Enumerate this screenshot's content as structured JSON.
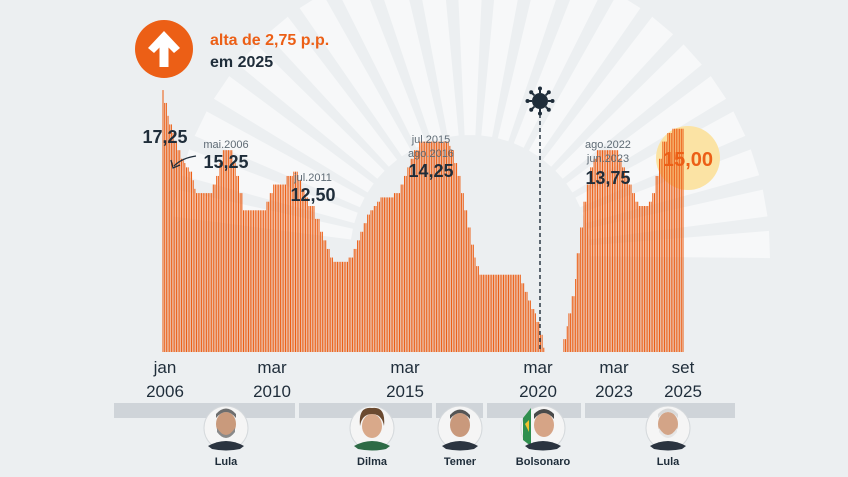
{
  "headline": {
    "line1": "alta de 2,75 p.p.",
    "line2": "em 2025",
    "icon": "arrow-up-icon",
    "accent_color": "#ec5f16"
  },
  "chart_data": {
    "type": "bar",
    "bar_color": "#ec5f16",
    "current_highlight_color": "#fbe3a4",
    "x_start": "2006-01",
    "x_end": "2025-09",
    "ylim": [
      2,
      19
    ],
    "series": [
      {
        "values": [
          17.25,
          16.5,
          16.5,
          15.75,
          15.25,
          15.25,
          14.75,
          14.25,
          14.25,
          13.75,
          13.75,
          13.25,
          13.25,
          13.0,
          12.75,
          12.75,
          12.5,
          12.5,
          12.0,
          11.5,
          11.25,
          11.25,
          11.25,
          11.25,
          11.25,
          11.25,
          11.25,
          11.25,
          11.25,
          11.25,
          11.75,
          11.75,
          12.25,
          12.25,
          13.0,
          13.0,
          13.75,
          13.75,
          13.75,
          13.75,
          13.75,
          13.75,
          13.0,
          13.0,
          12.25,
          12.25,
          11.25,
          11.25,
          10.25,
          10.25,
          10.25,
          10.25,
          10.25,
          10.25,
          10.25,
          10.25,
          10.25,
          10.25,
          10.25,
          10.25,
          10.25,
          10.25,
          10.75,
          10.75,
          11.25,
          11.25,
          11.75,
          11.75,
          11.75,
          11.75,
          11.75,
          11.75,
          11.75,
          11.75,
          12.25,
          12.25,
          12.25,
          12.25,
          12.5,
          12.5,
          12.5,
          12.0,
          12.0,
          11.5,
          11.5,
          11.0,
          11.0,
          10.5,
          10.5,
          10.5,
          10.5,
          9.75,
          9.75,
          9.75,
          9.0,
          9.0,
          8.5,
          8.5,
          8.0,
          8.0,
          7.5,
          7.5,
          7.25,
          7.25,
          7.25,
          7.25,
          7.25,
          7.25,
          7.25,
          7.25,
          7.25,
          7.5,
          7.5,
          7.5,
          8.0,
          8.0,
          8.5,
          8.5,
          9.0,
          9.0,
          9.5,
          9.5,
          10.0,
          10.0,
          10.25,
          10.25,
          10.5,
          10.5,
          10.75,
          10.75,
          11.0,
          11.0,
          11.0,
          11.0,
          11.0,
          11.0,
          11.0,
          11.0,
          11.25,
          11.25,
          11.25,
          11.25,
          11.75,
          11.75,
          12.25,
          12.25,
          12.75,
          12.75,
          13.25,
          13.25,
          13.75,
          13.75,
          13.75,
          14.25,
          14.25,
          14.25,
          14.25,
          14.25,
          14.25,
          14.25,
          14.25,
          14.25,
          14.25,
          14.25,
          14.25,
          14.25,
          14.25,
          14.25,
          14.25,
          14.25,
          14.25,
          14.0,
          13.75,
          13.75,
          13.0,
          13.0,
          12.25,
          12.25,
          11.25,
          11.25,
          10.25,
          10.25,
          9.25,
          9.25,
          8.25,
          8.25,
          7.5,
          7.0,
          7.0,
          6.5,
          6.5,
          6.5,
          6.5,
          6.5,
          6.5,
          6.5,
          6.5,
          6.5,
          6.5,
          6.5,
          6.5,
          6.5,
          6.5,
          6.5,
          6.5,
          6.5,
          6.5,
          6.5,
          6.5,
          6.5,
          6.5,
          6.5,
          6.5,
          6.5,
          6.0,
          6.0,
          5.5,
          5.5,
          5.0,
          5.0,
          4.5,
          4.5,
          4.25,
          3.75,
          3.75,
          3.0,
          3.0,
          2.25,
          2.0,
          2.0,
          2.0,
          2.0,
          2.0,
          2.0,
          2.0,
          2.0,
          2.0,
          2.0,
          2.0,
          2.75,
          2.75,
          3.5,
          4.25,
          4.25,
          5.25,
          5.25,
          6.25,
          7.75,
          7.75,
          9.25,
          9.25,
          10.75,
          10.75,
          11.75,
          11.75,
          12.75,
          12.75,
          13.25,
          13.25,
          13.75,
          13.75,
          13.75,
          13.75,
          13.75,
          13.75,
          13.75,
          13.75,
          13.75,
          13.75,
          13.75,
          13.75,
          13.75,
          13.25,
          13.25,
          12.75,
          12.75,
          12.25,
          12.25,
          11.75,
          11.75,
          11.25,
          11.25,
          10.75,
          10.75,
          10.5,
          10.5,
          10.5,
          10.5,
          10.5,
          10.5,
          10.75,
          10.75,
          11.25,
          11.25,
          12.25,
          12.25,
          13.25,
          13.25,
          14.25,
          14.25,
          14.25,
          14.75,
          14.75,
          14.75,
          15.0,
          15.0,
          15.0,
          15.0,
          15.0,
          15.0,
          15.0
        ]
      }
    ],
    "x_tick_labels": [
      {
        "month": "jan",
        "year": "2006"
      },
      {
        "month": "mar",
        "year": "2010"
      },
      {
        "month": "mar",
        "year": "2015"
      },
      {
        "month": "mar",
        "year": "2020"
      },
      {
        "month": "mar",
        "year": "2023"
      },
      {
        "month": "set",
        "year": "2025"
      }
    ],
    "annotations": [
      {
        "label_dates": [],
        "value": "17,25"
      },
      {
        "label_dates": [
          "mai.2006"
        ],
        "value": "15,25"
      },
      {
        "label_dates": [
          "jul.2011"
        ],
        "value": "12,50"
      },
      {
        "label_dates": [
          "jul.2015",
          "ago.2016"
        ],
        "value": "14,25"
      },
      {
        "label_dates": [
          "ago.2022",
          "jun.2023"
        ],
        "value": "13,75"
      },
      {
        "label_dates": [],
        "value": "15,00"
      }
    ],
    "event_marker": {
      "icon": "coronavirus-icon",
      "date": "2020-03"
    },
    "presidents": [
      {
        "name": "Lula",
        "from": "2006-01",
        "to": "2010-12"
      },
      {
        "name": "Dilma",
        "from": "2011-01",
        "to": "2016-08"
      },
      {
        "name": "Temer",
        "from": "2016-09",
        "to": "2018-12"
      },
      {
        "name": "Bolsonaro",
        "from": "2019-01",
        "to": "2022-12"
      },
      {
        "name": "Lula",
        "from": "2023-01",
        "to": "2025-09"
      }
    ]
  }
}
